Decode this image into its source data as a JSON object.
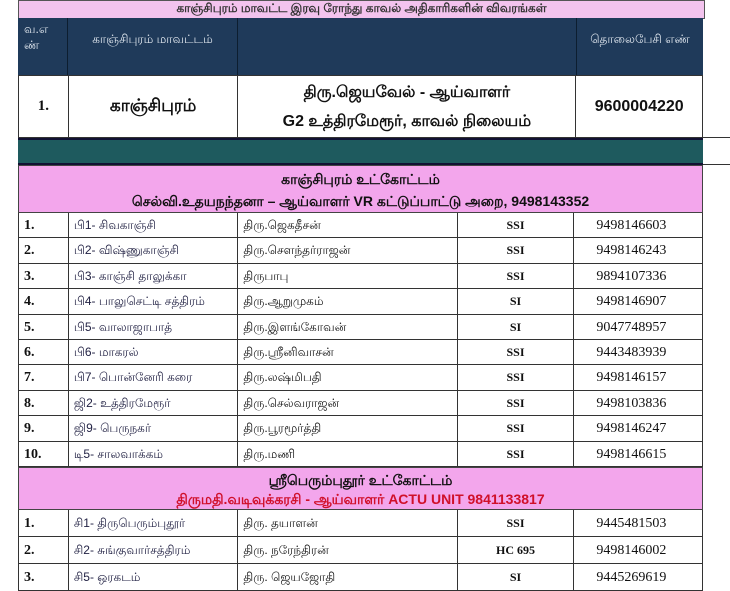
{
  "title": "காஞ்சிபுரம் மாவட்ட இரவு ரோந்து காவல் அதிகாரிகளின் விவரங்கள்",
  "header": {
    "sno": "வ.எ ண்",
    "district": "காஞ்சிபுரம் மாவட்டம்",
    "details": "",
    "phone": "தொலைபேசி எண்"
  },
  "district_row": {
    "sno": "1.",
    "district": "காஞ்சிபுரம்",
    "name": "திரு.ஜெயவேல் - ஆய்வாளர்",
    "station": "G2 உத்திரமேரூர், காவல் நிலையம்",
    "phone": "9600004220"
  },
  "section1": {
    "title": "காஞ்சிபுரம் உட்கோட்டம்",
    "officer": "செல்வி.உதயநந்தனா – ஆய்வாளர் VR கட்டுப்பாட்டு அறை, 9498143352",
    "rows": [
      {
        "sno": "1.",
        "station": "பி1- சிவகாஞ்சி",
        "name": "திரு.ஜெகதீசன்",
        "rank": "SSI",
        "phone": "9498146603"
      },
      {
        "sno": "2.",
        "station": "பி2- விஷ்ணுகாஞ்சி",
        "name": "திரு.சௌந்தர்ராஜன்",
        "rank": "SSI",
        "phone": "9498146243"
      },
      {
        "sno": "3.",
        "station": "பி3- காஞ்சி தாலுக்கா",
        "name": "திருபாபு",
        "rank": "SSI",
        "phone": "9894107336"
      },
      {
        "sno": "4.",
        "station": "பி4- பாலுசெட்டி சத்திரம்",
        "name": "திரு.ஆறுமுகம்",
        "rank": "SI",
        "phone": "9498146907"
      },
      {
        "sno": "5.",
        "station": "பி5- வாலாஜாபாத்",
        "name": "திரு.இளங்கோவன்",
        "rank": "SI",
        "phone": "9047748957"
      },
      {
        "sno": "6.",
        "station": "பி6- மாகரல்",
        "name": "திரு.ஸ்ரீனிவாசன்",
        "rank": "SSI",
        "phone": "9443483939"
      },
      {
        "sno": "7.",
        "station": "பி7- பொன்னேரி கரை",
        "name": "திரு.லஷ்மிபதி",
        "rank": "SSI",
        "phone": "9498146157"
      },
      {
        "sno": "8.",
        "station": "ஜி2- உத்திரமேரூர்",
        "name": "திரு.செல்வராஜன்",
        "rank": "SSI",
        "phone": "9498103836"
      },
      {
        "sno": "9.",
        "station": "ஜி9- பெருநகர்",
        "name": "திரு.பூரமூர்த்தி",
        "rank": "SSI",
        "phone": "9498146247"
      },
      {
        "sno": "10.",
        "station": "டி5- சாலவாக்கம்",
        "name": "திரு.மணி",
        "rank": "SSI",
        "phone": "9498146615"
      }
    ]
  },
  "section2": {
    "title": "ஸ்ரீபெரும்புதூர் உட்கோட்டம்",
    "officer": "திருமதி.வடிவுக்கரசி - ஆய்வாளர் ACTU UNIT 9841133817",
    "rows": [
      {
        "sno": "1.",
        "station": "சி1- திருபெரும்புதூர்",
        "name": "திரு. தயாளன்",
        "rank": "SSI",
        "phone": "9445481503"
      },
      {
        "sno": "2.",
        "station": "சி2- சுங்குவார்சத்திரம்",
        "name": "திரு. நரேந்திரன்",
        "rank": "HC 695",
        "phone": "9498146002"
      },
      {
        "sno": "3.",
        "station": "சி5- ஒரகடம்",
        "name": "திரு. ஜெயஜோதி",
        "rank": "SI",
        "phone": "9445269619"
      }
    ]
  },
  "colors": {
    "pink": "#f3a6ec",
    "navy": "#1f3a5a",
    "teal": "#1e5a5e",
    "red": "#d0102a"
  }
}
